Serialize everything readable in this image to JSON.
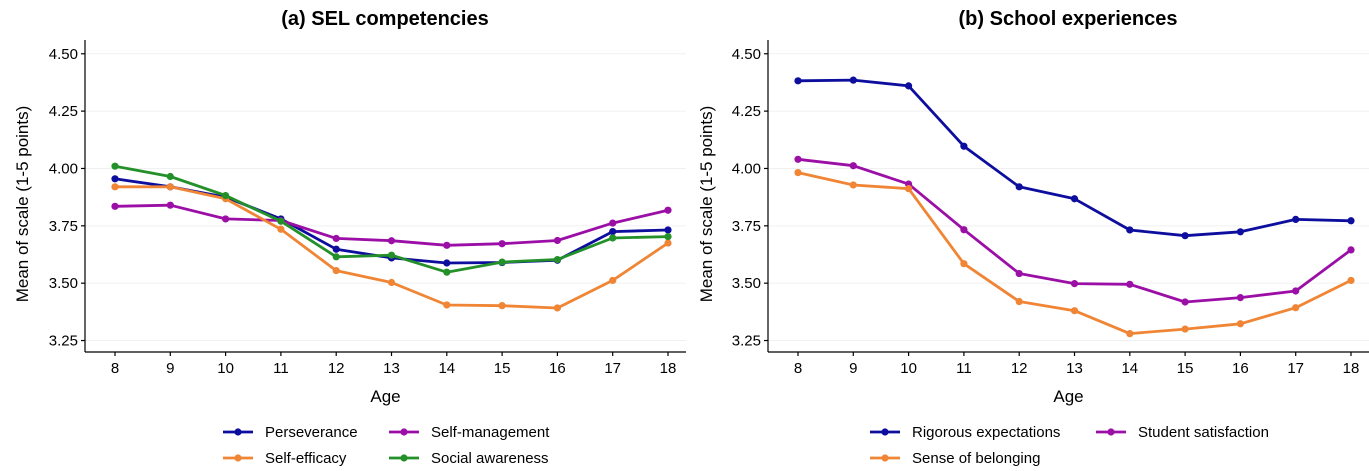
{
  "chart_data": [
    {
      "type": "line",
      "title": "(a) SEL competencies",
      "xlabel": "Age",
      "ylabel": "Mean of scale (1-5 points)",
      "ylim": [
        3.2,
        4.56
      ],
      "yticks": [
        3.25,
        3.5,
        3.75,
        4.0,
        4.25,
        4.5
      ],
      "ytick_labels": [
        "3.25",
        "3.50",
        "3.75",
        "4.00",
        "4.25",
        "4.50"
      ],
      "x": [
        8,
        9,
        10,
        11,
        12,
        13,
        14,
        15,
        16,
        17,
        18
      ],
      "grid": "horizontal light",
      "legend_position": "bottom",
      "series": [
        {
          "name": "Perseverance",
          "color": "#0d0d9e",
          "values": [
            3.955,
            3.92,
            3.875,
            3.78,
            3.648,
            3.61,
            3.588,
            3.59,
            3.6,
            3.725,
            3.732
          ]
        },
        {
          "name": "Self-management",
          "color": "#9b0fa6",
          "values": [
            3.835,
            3.84,
            3.78,
            3.773,
            3.695,
            3.685,
            3.665,
            3.672,
            3.686,
            3.762,
            3.818
          ]
        },
        {
          "name": "Self-efficacy",
          "color": "#ef8535",
          "values": [
            3.92,
            3.92,
            3.868,
            3.735,
            3.555,
            3.503,
            3.405,
            3.402,
            3.392,
            3.512,
            3.675
          ]
        },
        {
          "name": "Social awareness",
          "color": "#23902a",
          "values": [
            4.01,
            3.965,
            3.882,
            3.77,
            3.615,
            3.622,
            3.548,
            3.592,
            3.603,
            3.697,
            3.703
          ]
        }
      ]
    },
    {
      "type": "line",
      "title": "(b) School experiences",
      "xlabel": "Age",
      "ylabel": "Mean of scale (1-5 points)",
      "ylim": [
        3.2,
        4.56
      ],
      "yticks": [
        3.25,
        3.5,
        3.75,
        4.0,
        4.25,
        4.5
      ],
      "ytick_labels": [
        "3.25",
        "3.50",
        "3.75",
        "4.00",
        "4.25",
        "4.50"
      ],
      "x": [
        8,
        9,
        10,
        11,
        12,
        13,
        14,
        15,
        16,
        17,
        18
      ],
      "grid": "horizontal light",
      "legend_position": "bottom",
      "series": [
        {
          "name": "Rigorous expectations",
          "color": "#0d0d9e",
          "values": [
            4.382,
            4.385,
            4.36,
            4.097,
            3.92,
            3.868,
            3.732,
            3.707,
            3.724,
            3.778,
            3.772
          ]
        },
        {
          "name": "Student satisfaction",
          "color": "#9b0fa6",
          "values": [
            4.04,
            4.012,
            3.932,
            3.733,
            3.542,
            3.498,
            3.495,
            3.418,
            3.437,
            3.466,
            3.645
          ]
        },
        {
          "name": "Sense of belonging",
          "color": "#ef8535",
          "values": [
            3.982,
            3.928,
            3.912,
            3.585,
            3.42,
            3.38,
            3.28,
            3.3,
            3.323,
            3.393,
            3.512
          ]
        }
      ]
    }
  ]
}
